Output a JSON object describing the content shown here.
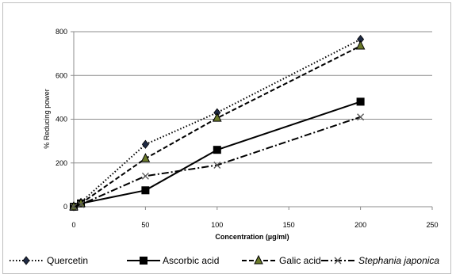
{
  "chart_data": {
    "type": "line",
    "xlabel": "Concentration (µg/ml)",
    "ylabel": "% Reducing power",
    "xlim": [
      0,
      250
    ],
    "ylim": [
      0,
      800
    ],
    "xticks": [
      "0",
      "50",
      "100",
      "150",
      "200",
      "250"
    ],
    "yticks": [
      "0",
      "200",
      "400",
      "600",
      "800"
    ],
    "grid": "horizontal",
    "legend": "bottom",
    "series": [
      {
        "name": "Quercetin",
        "style": "dotted",
        "marker": "diamond",
        "color": "#000000",
        "points": [
          [
            0,
            0
          ],
          [
            5,
            20
          ],
          [
            50,
            285
          ],
          [
            100,
            430
          ],
          [
            200,
            765
          ]
        ]
      },
      {
        "name": "Ascorbic acid",
        "style": "solid",
        "marker": "square",
        "color": "#000000",
        "points": [
          [
            0,
            0
          ],
          [
            5,
            15
          ],
          [
            50,
            75
          ],
          [
            100,
            260
          ],
          [
            200,
            480
          ]
        ]
      },
      {
        "name": "Galic acid",
        "style": "dashed",
        "marker": "triangle",
        "color": "#000000",
        "points": [
          [
            0,
            0
          ],
          [
            5,
            15
          ],
          [
            50,
            220
          ],
          [
            100,
            405
          ],
          [
            200,
            735
          ]
        ]
      },
      {
        "name": "Stephania japonica",
        "style": "dashdot",
        "marker": "x",
        "color": "#000000",
        "points": [
          [
            0,
            0
          ],
          [
            5,
            10
          ],
          [
            50,
            140
          ],
          [
            100,
            190
          ],
          [
            200,
            410
          ]
        ]
      }
    ]
  }
}
